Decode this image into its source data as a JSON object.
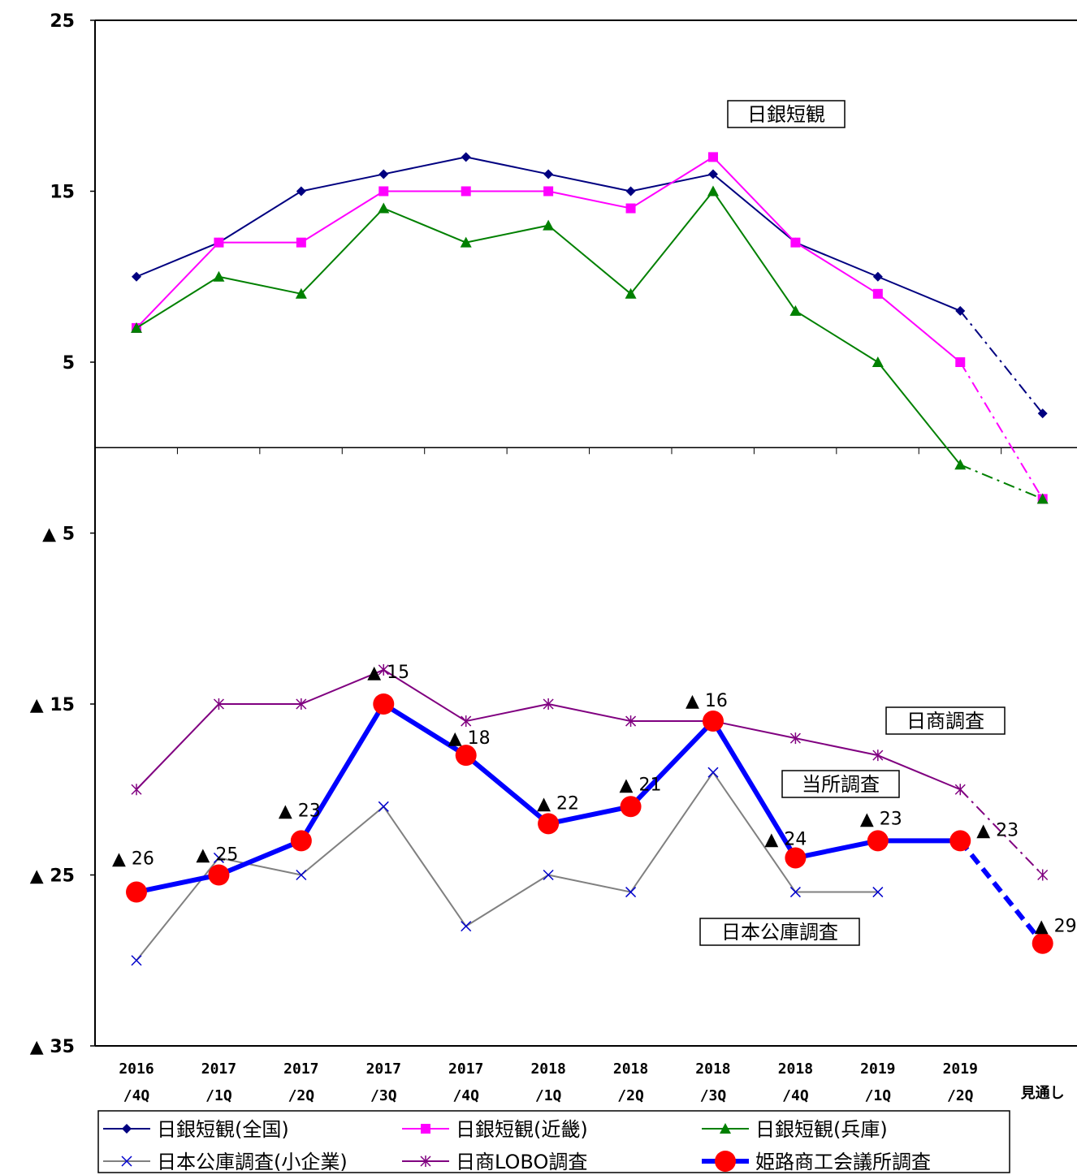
{
  "chart_data": {
    "type": "line",
    "title": "",
    "xlabel": "",
    "ylabel": "",
    "ylim": [
      -35,
      25
    ],
    "y_ticks": [
      {
        "value": 25,
        "label": "25"
      },
      {
        "value": 15,
        "label": "15"
      },
      {
        "value": 5,
        "label": "5"
      },
      {
        "value": -5,
        "label": "▲ 5"
      },
      {
        "value": -15,
        "label": "▲ 15"
      },
      {
        "value": -25,
        "label": "▲ 25"
      },
      {
        "value": -35,
        "label": "▲ 35"
      }
    ],
    "categories": [
      [
        "2016",
        "/4Q"
      ],
      [
        "2017",
        "/1Q"
      ],
      [
        "2017",
        "/2Q"
      ],
      [
        "2017",
        "/3Q"
      ],
      [
        "2017",
        "/4Q"
      ],
      [
        "2018",
        "/1Q"
      ],
      [
        "2018",
        "/2Q"
      ],
      [
        "2018",
        "/3Q"
      ],
      [
        "2018",
        "/4Q"
      ],
      [
        "2019",
        "/1Q"
      ],
      [
        "2019",
        "/2Q"
      ],
      [
        "見通し",
        ""
      ]
    ],
    "series": [
      {
        "name": "日銀短観(全国)",
        "color": "#000080",
        "marker": "diamond",
        "values": [
          10,
          12,
          15,
          16,
          17,
          16,
          15,
          16,
          12,
          10,
          8,
          2
        ],
        "forecast_from": 10
      },
      {
        "name": "日銀短観(近畿)",
        "color": "#ff00ff",
        "marker": "square",
        "values": [
          7,
          12,
          12,
          15,
          15,
          15,
          14,
          17,
          12,
          9,
          5,
          -3
        ],
        "forecast_from": 10
      },
      {
        "name": "日銀短観(兵庫)",
        "color": "#008000",
        "marker": "triangle",
        "values": [
          7,
          10,
          9,
          14,
          12,
          13,
          9,
          15,
          8,
          5,
          -1,
          -3
        ],
        "forecast_from": 10
      },
      {
        "name": "日本公庫調査(小企業)",
        "color": "#808080",
        "marker": "x",
        "values": [
          -30,
          -24,
          -25,
          -21,
          -28,
          -25,
          -26,
          -19,
          -26,
          -26,
          null,
          null
        ]
      },
      {
        "name": "日商LOBO調査",
        "color": "#800080",
        "marker": "star",
        "values": [
          -20,
          -15,
          -15,
          -13,
          -16,
          -15,
          -16,
          -16,
          -17,
          -18,
          -20,
          -25
        ],
        "forecast_from": 10
      },
      {
        "name": "姫路商工会議所調査",
        "color": "#0000ff",
        "marker": "bigcircle",
        "marker_color": "#ff0000",
        "values": [
          -26,
          -25,
          -23,
          -15,
          -18,
          -22,
          -21,
          -16,
          -24,
          -23,
          -23,
          -29
        ],
        "forecast_from": 10,
        "data_labels": [
          "▲ 26",
          "▲ 25",
          "▲ 23",
          "▲ 15",
          "▲ 18",
          "▲ 22",
          "▲ 21",
          "▲ 16",
          "▲ 24",
          "▲ 23",
          "▲ 23",
          "▲ 29"
        ]
      }
    ],
    "annotations": [
      "日銀短観",
      "日商調査",
      "当所調査",
      "日本公庫調査"
    ],
    "legend": {
      "placement": "bottom",
      "columns": 3
    }
  }
}
